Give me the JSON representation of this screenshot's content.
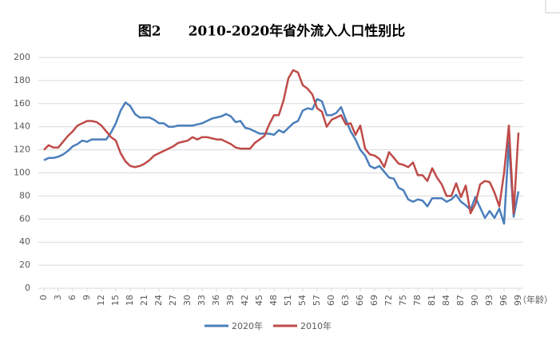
{
  "chart_data": {
    "type": "line",
    "title": "图2　　2010-2020年省外流入人口性别比",
    "x_label": "（年龄）",
    "x": [
      0,
      1,
      2,
      3,
      4,
      5,
      6,
      7,
      8,
      9,
      10,
      11,
      12,
      13,
      14,
      15,
      16,
      17,
      18,
      19,
      20,
      21,
      22,
      23,
      24,
      25,
      26,
      27,
      28,
      29,
      30,
      31,
      32,
      33,
      34,
      35,
      36,
      37,
      38,
      39,
      40,
      41,
      42,
      43,
      44,
      45,
      46,
      47,
      48,
      49,
      50,
      51,
      52,
      53,
      54,
      55,
      56,
      57,
      58,
      59,
      60,
      61,
      62,
      63,
      64,
      65,
      66,
      67,
      68,
      69,
      70,
      71,
      72,
      73,
      74,
      75,
      76,
      77,
      78,
      79,
      80,
      81,
      82,
      83,
      84,
      85,
      86,
      87,
      88,
      89,
      90,
      91,
      92,
      93,
      94,
      95,
      96,
      97,
      98,
      99
    ],
    "xlim": [
      0,
      99
    ],
    "xticks": [
      0,
      3,
      6,
      9,
      12,
      15,
      18,
      21,
      24,
      27,
      30,
      33,
      36,
      39,
      42,
      45,
      48,
      51,
      54,
      57,
      60,
      63,
      66,
      69,
      72,
      75,
      78,
      81,
      84,
      87,
      90,
      93,
      96,
      99
    ],
    "ylim": [
      0,
      200
    ],
    "yticks": [
      0,
      20,
      40,
      60,
      80,
      100,
      120,
      140,
      160,
      180,
      200
    ],
    "grid": true,
    "series": [
      {
        "name": "2020年",
        "color": "#4a7ebb",
        "values": [
          111,
          113,
          113,
          114,
          116,
          119,
          123,
          125,
          128,
          127,
          129,
          129,
          129,
          129,
          135,
          143,
          154,
          161,
          158,
          151,
          148,
          148,
          148,
          146,
          143,
          143,
          140,
          140,
          141,
          141,
          141,
          141,
          142,
          143,
          145,
          147,
          148,
          149,
          151,
          149,
          144,
          145,
          139,
          138,
          136,
          134,
          134,
          134,
          133,
          137,
          135,
          139,
          143,
          145,
          154,
          156,
          155,
          164,
          162,
          150,
          150,
          152,
          157,
          146,
          136,
          129,
          120,
          115,
          106,
          104,
          106,
          101,
          96,
          95,
          87,
          85,
          77,
          75,
          77,
          76,
          71,
          78,
          78,
          78,
          75,
          77,
          81,
          75,
          72,
          68,
          79,
          70,
          61,
          67,
          61,
          69,
          56,
          127,
          62,
          84
        ]
      },
      {
        "name": "2010年",
        "color": "#be4b48",
        "values": [
          120,
          124,
          122,
          122,
          127,
          132,
          136,
          141,
          143,
          145,
          145,
          144,
          141,
          136,
          131,
          128,
          117,
          110,
          106,
          105,
          106,
          108,
          111,
          115,
          117,
          119,
          121,
          123,
          126,
          127,
          128,
          131,
          129,
          131,
          131,
          130,
          129,
          129,
          127,
          125,
          122,
          121,
          121,
          121,
          126,
          129,
          132,
          142,
          150,
          150,
          163,
          182,
          189,
          187,
          176,
          173,
          168,
          156,
          153,
          140,
          146,
          148,
          150,
          142,
          143,
          133,
          141,
          121,
          116,
          115,
          112,
          105,
          118,
          113,
          108,
          107,
          105,
          109,
          98,
          98,
          93,
          104,
          96,
          90,
          80,
          80,
          91,
          79,
          89,
          65,
          73,
          90,
          93,
          92,
          83,
          71,
          100,
          141,
          65,
          135
        ]
      }
    ]
  }
}
